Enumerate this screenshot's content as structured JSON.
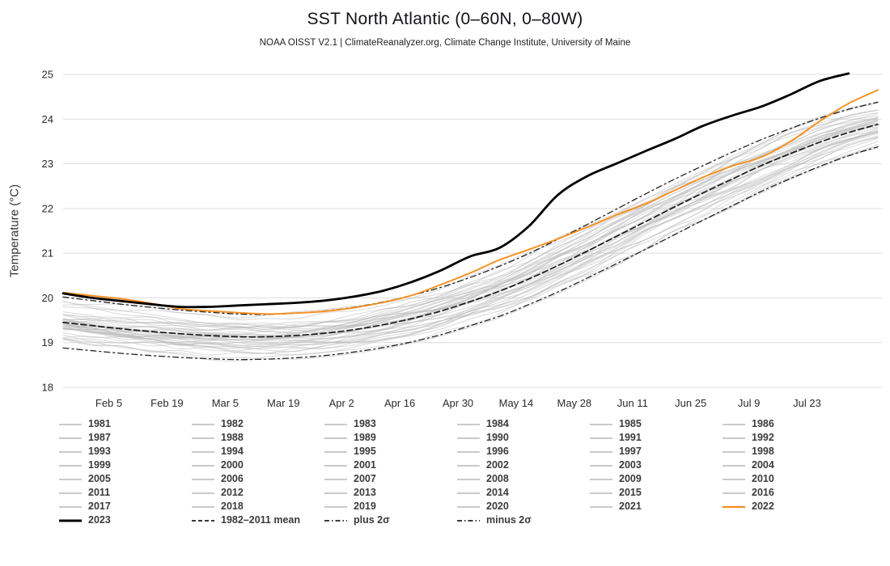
{
  "header": {
    "title": "SST North Atlantic (0–60N, 0–80W)",
    "subtitle": "NOAA OISST V2.1 | ClimateReanalyzer.org, Climate Change Institute, University of Maine"
  },
  "chart_data": {
    "type": "line",
    "title": "SST North Atlantic (0–60N, 0–80W)",
    "xlabel": "",
    "ylabel": "Temperature (°C)",
    "ylim": [
      18,
      25
    ],
    "yticks": [
      18,
      19,
      20,
      21,
      22,
      23,
      24,
      25
    ],
    "grid": "horizontal",
    "legend_position": "bottom",
    "xtick_labels": [
      "Feb 5",
      "Feb 19",
      "Mar 5",
      "Mar 19",
      "Apr 2",
      "Apr 16",
      "Apr 30",
      "May 14",
      "May 28",
      "Jun 11",
      "Jun 25",
      "Jul 9",
      "Jul 23"
    ],
    "xtick_days": [
      11,
      25,
      39,
      53,
      67,
      81,
      95,
      109,
      123,
      137,
      151,
      165,
      179
    ],
    "x_range_days": [
      0,
      197
    ],
    "x_days": [
      0,
      7,
      14,
      21,
      28,
      35,
      42,
      49,
      56,
      63,
      70,
      77,
      84,
      91,
      98,
      105,
      112,
      119,
      126,
      133,
      140,
      147,
      154,
      161,
      168,
      175,
      182,
      189,
      196
    ],
    "mean_1982_2011": [
      19.45,
      19.38,
      19.31,
      19.25,
      19.2,
      19.16,
      19.13,
      19.13,
      19.16,
      19.21,
      19.29,
      19.4,
      19.54,
      19.71,
      19.92,
      20.15,
      20.42,
      20.72,
      21.04,
      21.37,
      21.7,
      22.03,
      22.35,
      22.66,
      22.96,
      23.23,
      23.48,
      23.7,
      23.88
    ],
    "two_sigma": [
      0.57,
      0.56,
      0.55,
      0.54,
      0.53,
      0.52,
      0.51,
      0.5,
      0.5,
      0.5,
      0.5,
      0.51,
      0.52,
      0.53,
      0.54,
      0.56,
      0.57,
      0.59,
      0.6,
      0.61,
      0.62,
      0.62,
      0.61,
      0.6,
      0.58,
      0.56,
      0.54,
      0.52,
      0.5
    ],
    "series": [
      {
        "name": "2022",
        "color": "#f78f1e",
        "width": 1.9,
        "values": [
          20.12,
          20.05,
          19.98,
          19.88,
          19.76,
          19.71,
          19.67,
          19.64,
          19.66,
          19.7,
          19.78,
          19.9,
          20.06,
          20.3,
          20.56,
          20.85,
          21.08,
          21.32,
          21.58,
          21.85,
          22.1,
          22.4,
          22.7,
          22.95,
          23.15,
          23.5,
          23.95,
          24.35,
          24.65
        ]
      },
      {
        "name": "2023",
        "color": "#000000",
        "width": 2.8,
        "values": [
          20.1,
          20.0,
          19.93,
          19.86,
          19.8,
          19.8,
          19.83,
          19.86,
          19.89,
          19.94,
          20.03,
          20.16,
          20.36,
          20.62,
          20.93,
          21.12,
          21.6,
          22.3,
          22.72,
          23.0,
          23.28,
          23.55,
          23.85,
          24.08,
          24.28,
          24.55,
          24.85,
          25.02
        ]
      }
    ],
    "background_years": [
      1981,
      1982,
      1983,
      1984,
      1985,
      1986,
      1987,
      1988,
      1989,
      1990,
      1991,
      1992,
      1993,
      1994,
      1995,
      1996,
      1997,
      1998,
      1999,
      2000,
      2001,
      2002,
      2003,
      2004,
      2005,
      2006,
      2007,
      2008,
      2009,
      2010,
      2011,
      2012,
      2013,
      2014,
      2015,
      2016,
      2017,
      2018,
      2019,
      2020,
      2021
    ],
    "legend": {
      "mean_label": "1982–2011 mean",
      "plus_label": "plus 2σ",
      "minus_label": "minus 2σ"
    },
    "colors": {
      "grid": "#dcdcdc",
      "background_years": "#b9b9b9",
      "mean": "#1a1a1a",
      "sigma": "#222222"
    }
  }
}
